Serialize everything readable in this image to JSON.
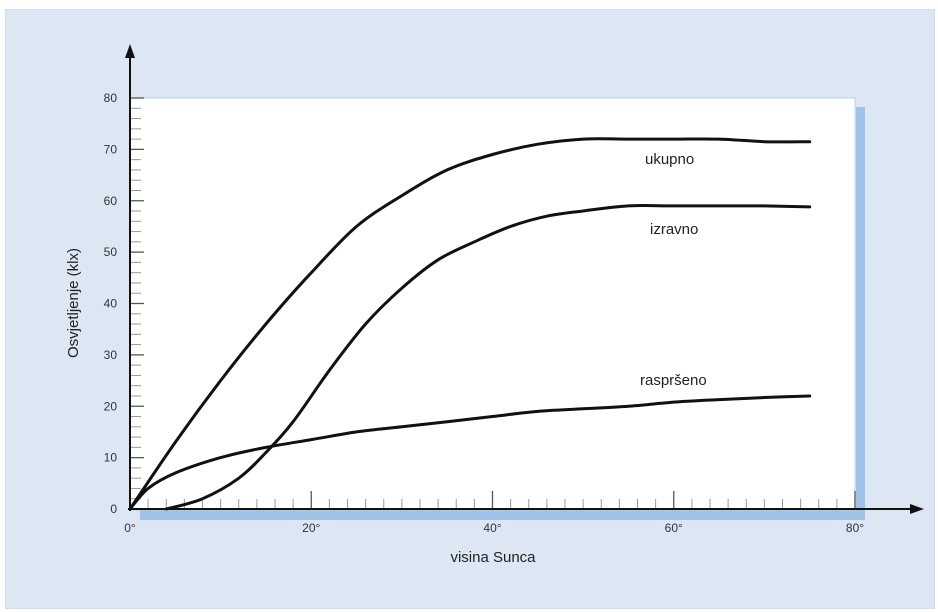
{
  "chart_data": {
    "type": "line",
    "title": "",
    "xlabel": "visina Sunca",
    "ylabel": "Osvjetljenje (klx)",
    "xlim": [
      0,
      80
    ],
    "ylim": [
      0,
      80
    ],
    "x_ticks": [
      {
        "value": 0,
        "label": "0°"
      },
      {
        "value": 20,
        "label": "20°"
      },
      {
        "value": 40,
        "label": "40°"
      },
      {
        "value": 60,
        "label": "60°"
      },
      {
        "value": 80,
        "label": "80°"
      }
    ],
    "y_ticks": [
      0,
      10,
      20,
      30,
      40,
      50,
      60,
      70,
      80
    ],
    "series": [
      {
        "name": "ukupno",
        "points": [
          [
            0,
            0
          ],
          [
            5,
            13
          ],
          [
            10,
            25
          ],
          [
            15,
            36
          ],
          [
            20,
            46
          ],
          [
            25,
            55
          ],
          [
            30,
            61
          ],
          [
            35,
            66
          ],
          [
            40,
            69
          ],
          [
            45,
            71
          ],
          [
            50,
            72
          ],
          [
            55,
            72
          ],
          [
            60,
            72
          ],
          [
            65,
            72
          ],
          [
            70,
            71.5
          ],
          [
            75,
            71.5
          ]
        ]
      },
      {
        "name": "izravno",
        "points": [
          [
            4,
            0
          ],
          [
            8,
            2
          ],
          [
            12,
            6
          ],
          [
            15,
            11
          ],
          [
            18,
            17
          ],
          [
            22,
            27
          ],
          [
            26,
            36
          ],
          [
            30,
            43
          ],
          [
            34,
            48.5
          ],
          [
            38,
            52
          ],
          [
            42,
            55
          ],
          [
            46,
            57
          ],
          [
            50,
            58
          ],
          [
            55,
            59
          ],
          [
            60,
            59
          ],
          [
            65,
            59
          ],
          [
            70,
            59
          ],
          [
            75,
            58.8
          ]
        ]
      },
      {
        "name": "raspršeno",
        "points": [
          [
            0,
            0
          ],
          [
            2,
            4
          ],
          [
            5,
            7
          ],
          [
            10,
            10
          ],
          [
            15,
            12
          ],
          [
            20,
            13.5
          ],
          [
            25,
            15
          ],
          [
            30,
            16
          ],
          [
            35,
            17
          ],
          [
            40,
            18
          ],
          [
            45,
            19
          ],
          [
            50,
            19.5
          ],
          [
            55,
            20
          ],
          [
            60,
            20.8
          ],
          [
            65,
            21.3
          ],
          [
            70,
            21.7
          ],
          [
            75,
            22
          ]
        ]
      }
    ]
  }
}
